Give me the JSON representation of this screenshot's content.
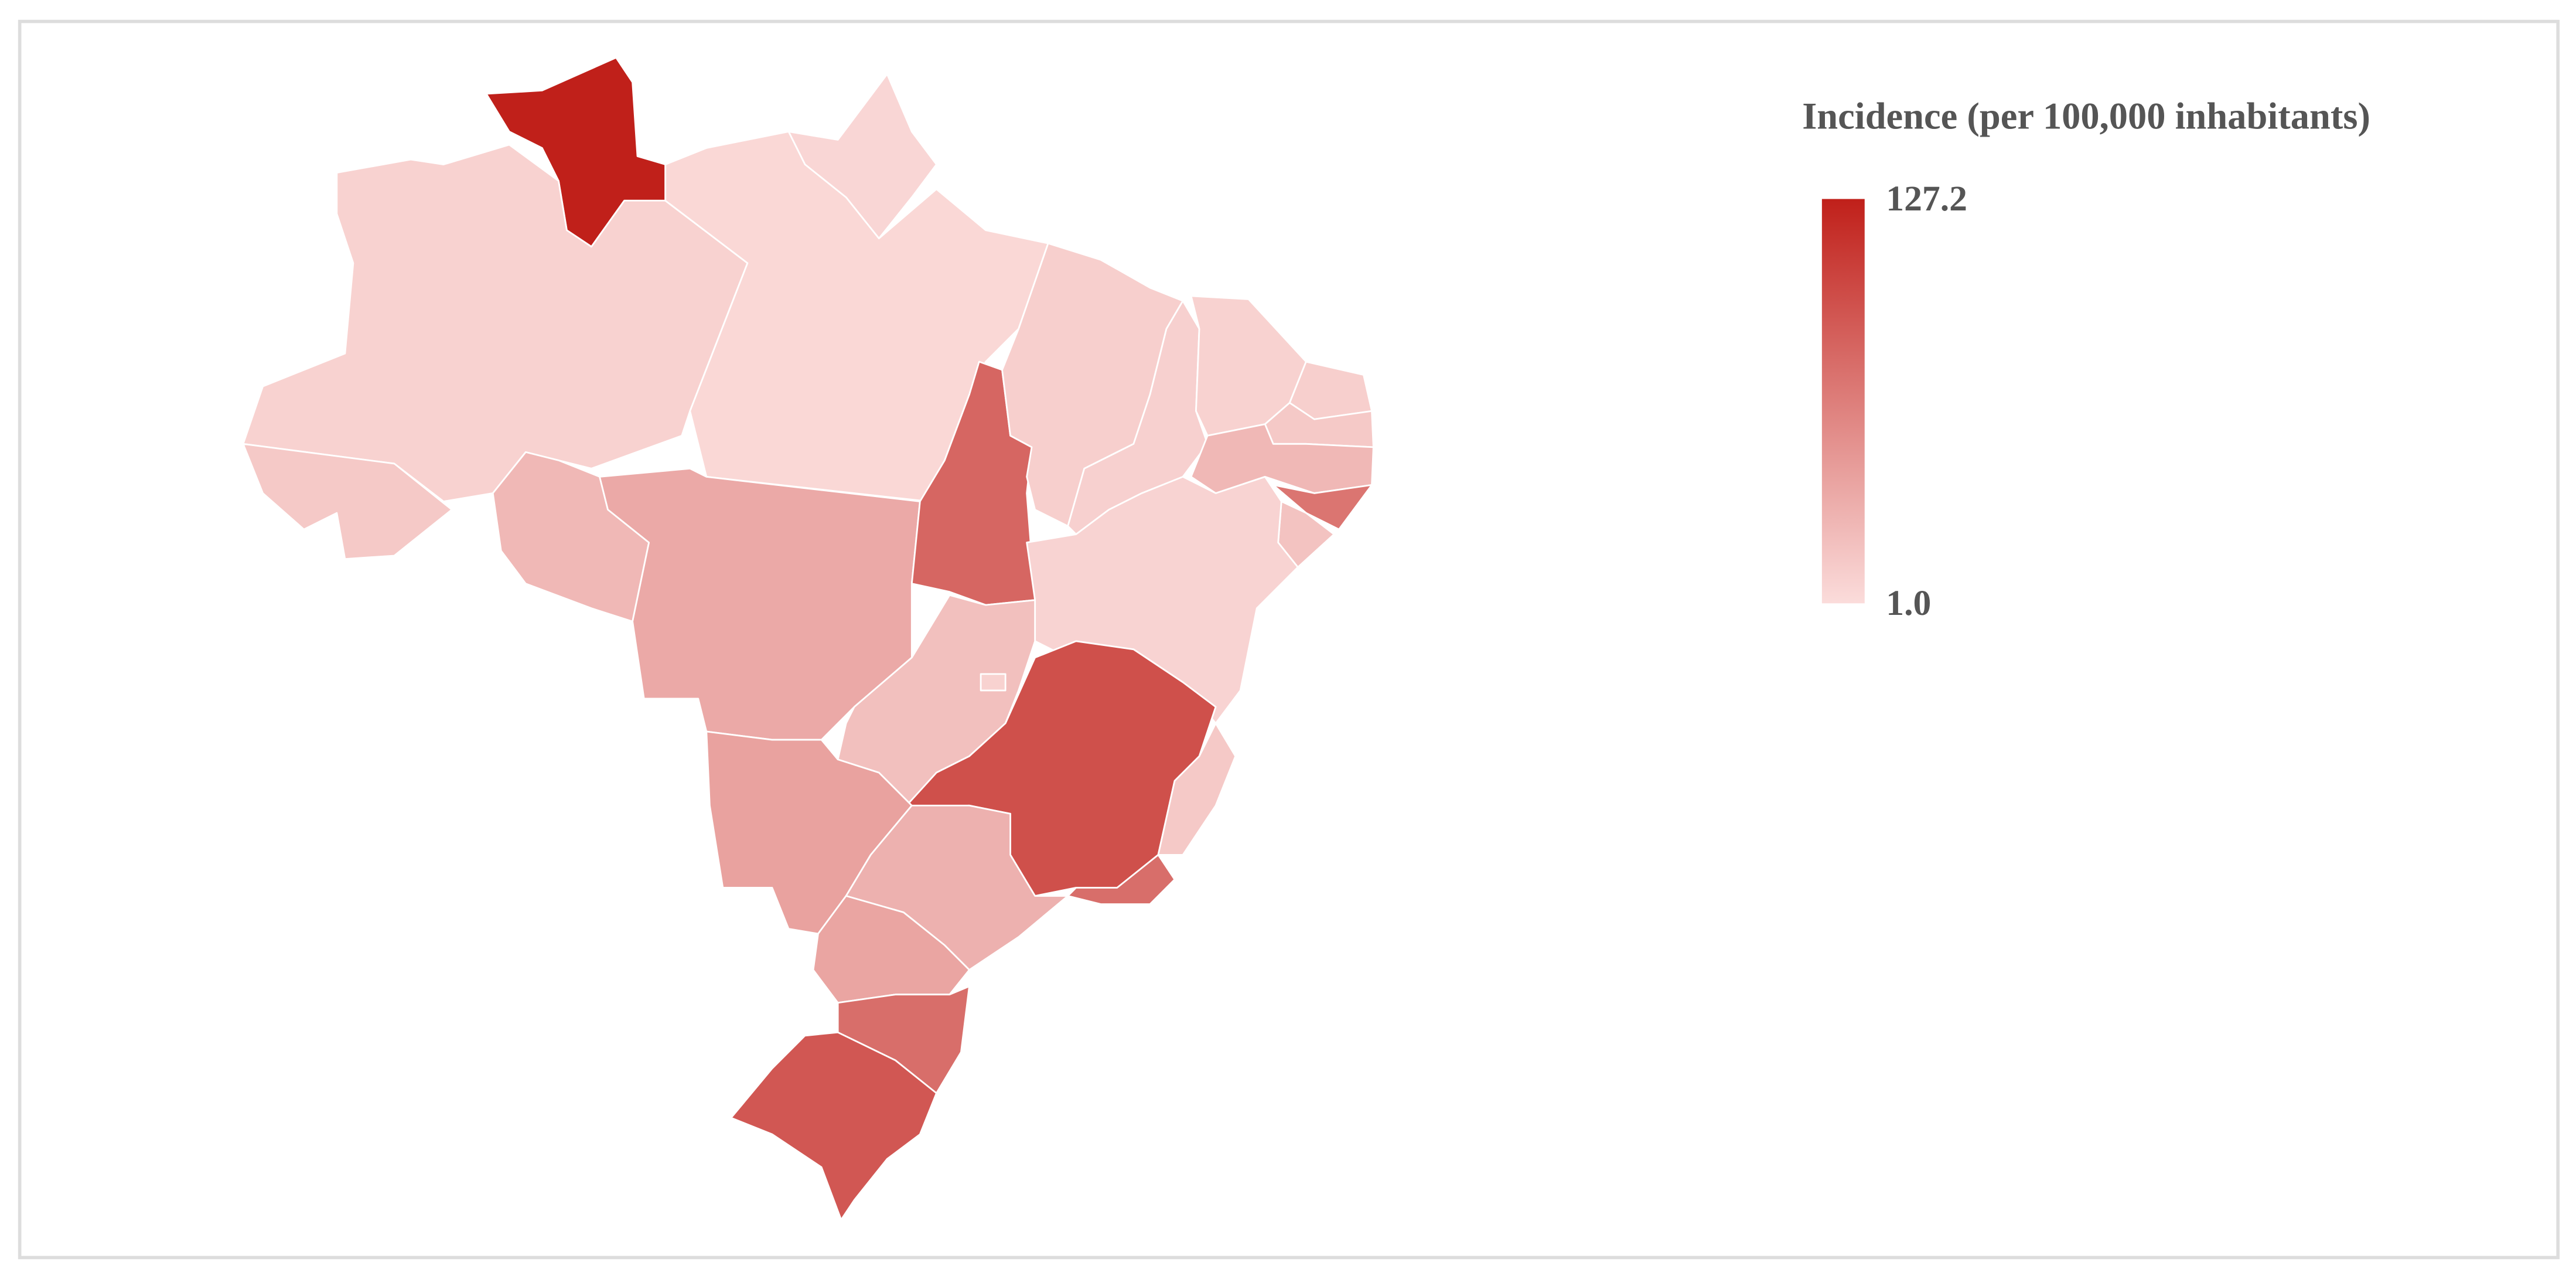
{
  "chart_data": {
    "type": "choropleth",
    "legend": {
      "title": "Incidence (per 100,000 inhabitants)",
      "ticks": [
        127.2,
        {
          "value": 1,
          "label": "1.0"
        }
      ],
      "range": [
        1,
        127.2
      ],
      "color_min": "#fbdcdb",
      "color_max": "#c0201a"
    },
    "regions": {
      "values": [
        127.2,
        8,
        5,
        4,
        14,
        25,
        35,
        80,
        10,
        9,
        8,
        10,
        14,
        25,
        70,
        18,
        7,
        20,
        8,
        95,
        14,
        75,
        40,
        30,
        38,
        75,
        90
      ]
    }
  }
}
